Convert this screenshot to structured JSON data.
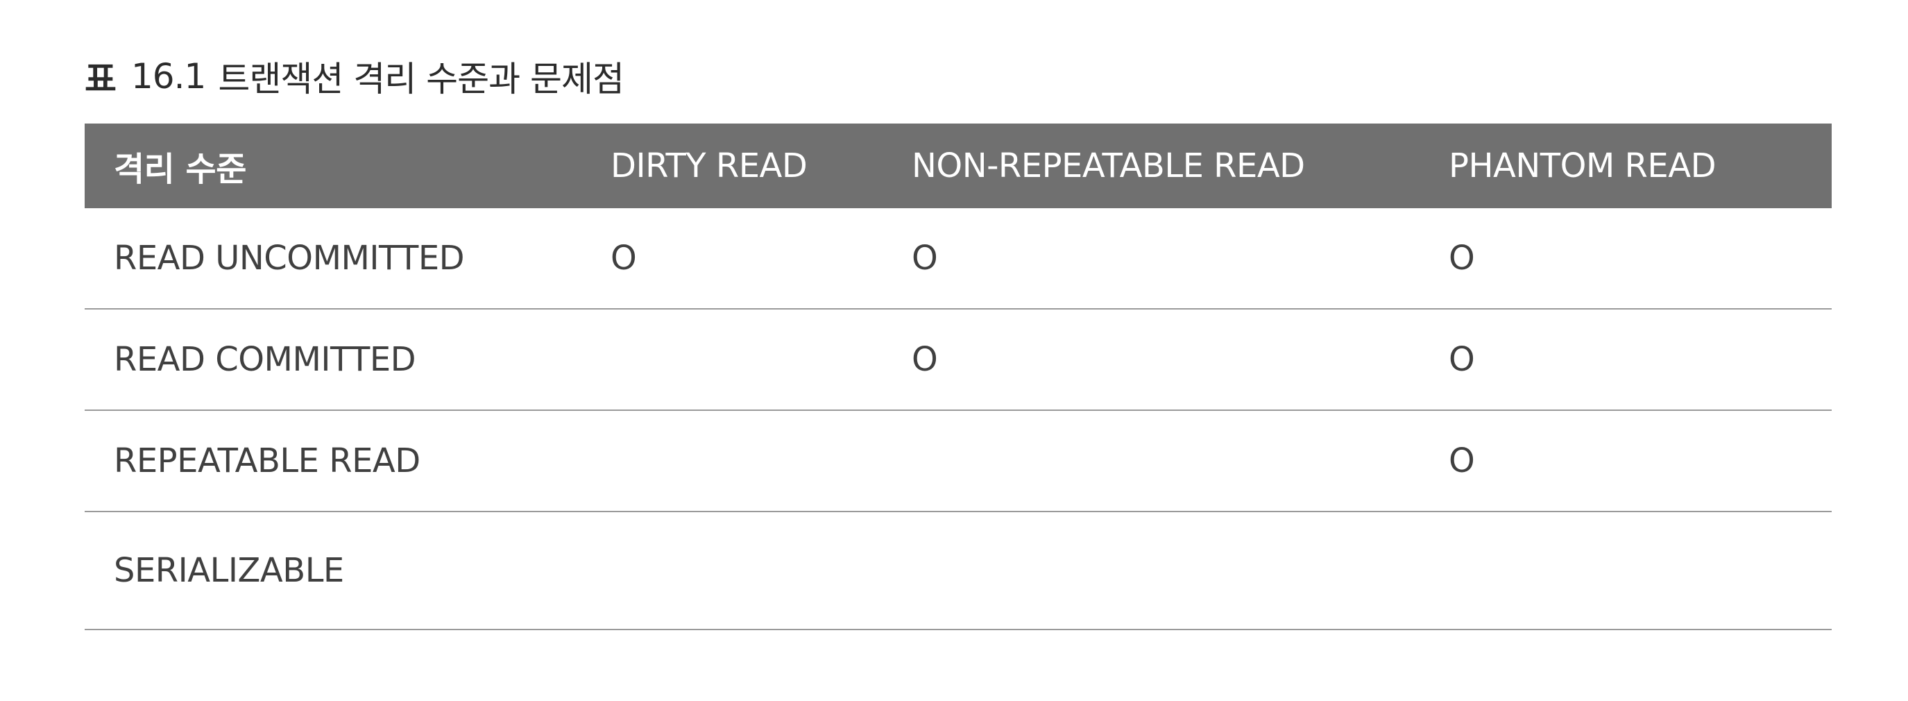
{
  "caption": {
    "label": "표",
    "number": "16.1",
    "text": "트랜잭션 격리 수준과 문제점"
  },
  "table": {
    "headers": [
      "격리 수준",
      "DIRTY READ",
      "NON-REPEATABLE READ",
      "PHANTOM READ"
    ],
    "rows": [
      [
        "READ UNCOMMITTED",
        "O",
        "O",
        "O"
      ],
      [
        "READ COMMITTED",
        "",
        "O",
        "O"
      ],
      [
        "REPEATABLE READ",
        "",
        "",
        "O"
      ],
      [
        "SERIALIZABLE",
        "",
        "",
        ""
      ]
    ]
  }
}
